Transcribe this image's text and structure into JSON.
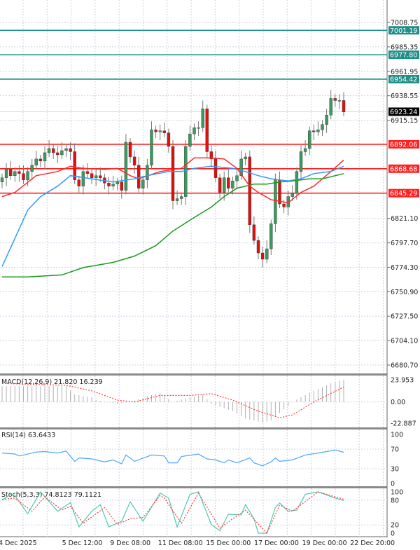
{
  "chart_data": [
    {
      "type": "candlestick",
      "panel": "price",
      "price_ticks": [
        "7008.75",
        "6985.35",
        "6961.95",
        "6938.55",
        "6915.15",
        "6821.10",
        "6797.70",
        "6774.30",
        "6750.90",
        "6727.50",
        "6704.10",
        "6680.70"
      ],
      "ylim": [
        6680.7,
        7008.75
      ],
      "grid": true,
      "first_open": 6856,
      "closes": [
        6860,
        6868,
        6862,
        6866,
        6864,
        6858,
        6866,
        6872,
        6878,
        6876,
        6884,
        6888,
        6884,
        6882,
        6886,
        6888,
        6885,
        6858,
        6852,
        6866,
        6864,
        6860,
        6862,
        6860,
        6855,
        6852,
        6854,
        6856,
        6848,
        6894,
        6880,
        6872,
        6850,
        6858,
        6872,
        6906,
        6904,
        6905,
        6903,
        6890,
        6838,
        6840,
        6842,
        6890,
        6902,
        6908,
        6908,
        6926,
        6885,
        6878,
        6860,
        6846,
        6860,
        6850,
        6857,
        6862,
        6878,
        6880,
        6815,
        6800,
        6788,
        6782,
        6792,
        6816,
        6858,
        6835,
        6832,
        6842,
        6845,
        6866,
        6885,
        6888,
        6905,
        6904,
        6906,
        6911,
        6920,
        6936,
        6934,
        6934,
        6923
      ],
      "current_price": {
        "value": "6923.24",
        "color": "#000000"
      },
      "levels": [
        {
          "value": "7001.19",
          "color": "#1f8f8a"
        },
        {
          "value": "6977.80",
          "color": "#1f8f8a"
        },
        {
          "value": "6954.42",
          "color": "#1f8f8a"
        },
        {
          "value": "6892.06",
          "color": "#ff2020"
        },
        {
          "value": "6868.68",
          "color": "#ff2020"
        },
        {
          "value": "6845.29",
          "color": "#ff2020"
        }
      ],
      "moving_averages": [
        {
          "color": "#ff2a2a",
          "idx": [
            0,
            3,
            8,
            13,
            16,
            19,
            24,
            27,
            30,
            32,
            37,
            42,
            45,
            49,
            52,
            55,
            58,
            60,
            63,
            67,
            70,
            73,
            77,
            80
          ],
          "values": [
            6842,
            6846,
            6862,
            6866,
            6871,
            6869,
            6868,
            6869,
            6862,
            6859,
            6866,
            6869,
            6879,
            6879,
            6878,
            6869,
            6852,
            6846,
            6839,
            6836,
            6846,
            6852,
            6866,
            6877
          ]
        },
        {
          "color": "#3399ff",
          "idx": [
            0,
            3,
            6,
            9,
            13,
            16,
            21,
            26,
            31,
            34,
            39,
            42,
            45,
            49,
            54,
            57,
            60,
            63,
            67,
            70,
            73,
            77,
            80
          ],
          "values": [
            6775,
            6802,
            6829,
            6842,
            6852,
            6862,
            6859,
            6856,
            6859,
            6862,
            6866,
            6866,
            6869,
            6871,
            6869,
            6866,
            6862,
            6859,
            6857,
            6859,
            6864,
            6866,
            6871
          ]
        },
        {
          "color": "#1a9a1a",
          "idx": [
            0,
            6,
            14,
            19,
            26,
            31,
            36,
            40,
            45,
            49,
            52,
            55,
            59,
            62,
            65,
            68,
            72,
            75,
            80
          ],
          "values": [
            6765,
            6765,
            6767,
            6774,
            6779,
            6785,
            6795,
            6809,
            6822,
            6832,
            6842,
            6850,
            6854,
            6854,
            6856,
            6857,
            6859,
            6859,
            6864
          ]
        }
      ],
      "up_color": "#3c9a5f",
      "down_color": "#e01010"
    },
    {
      "type": "bar+line",
      "panel": "macd",
      "label": "MACD(12,26,9) 21.820 16.239",
      "ticks": [
        "23.953",
        "0.00",
        "-22.887"
      ],
      "ylim": [
        -22.887,
        23.953
      ],
      "histogram": {
        "idx": [
          0,
          15,
          17,
          21,
          22,
          27,
          30,
          34,
          37,
          40,
          44,
          47,
          49,
          54,
          57,
          61,
          63,
          65,
          68,
          72,
          77,
          80
        ],
        "values": [
          17,
          17,
          8,
          5,
          2,
          -2,
          0,
          6,
          10,
          0,
          5,
          8,
          -2,
          -10,
          -18,
          -22,
          -20,
          -12,
          0,
          10,
          20,
          24
        ],
        "color": "#b0b0b0"
      },
      "signal": {
        "idx": [
          0,
          15,
          21,
          27,
          31,
          37,
          44,
          49,
          54,
          60,
          65,
          68,
          73,
          80
        ],
        "values": [
          20,
          18,
          12,
          2,
          0,
          7,
          7,
          9,
          2,
          -10,
          -17,
          -14,
          0,
          16
        ],
        "color": "#ff4040"
      }
    },
    {
      "type": "line",
      "panel": "rsi",
      "label": "RSI(14) 63.6433",
      "ticks": [
        "100",
        "70",
        "30",
        "0"
      ],
      "ylim": [
        0,
        100
      ],
      "series": [
        {
          "color": "#4da6ff",
          "idx": [
            0,
            3,
            4,
            8,
            10,
            13,
            15,
            17,
            18,
            21,
            24,
            26,
            28,
            29,
            31,
            35,
            38,
            39,
            41,
            42,
            46,
            48,
            50,
            52,
            53,
            55,
            58,
            59,
            61,
            63,
            64,
            65,
            68,
            71,
            74,
            78,
            80
          ],
          "values": [
            62,
            60,
            56,
            64,
            65,
            62,
            66,
            45,
            52,
            50,
            44,
            48,
            40,
            58,
            45,
            58,
            56,
            42,
            42,
            55,
            60,
            50,
            48,
            42,
            48,
            42,
            52,
            42,
            36,
            44,
            52,
            45,
            48,
            58,
            62,
            68,
            63.6
          ]
        }
      ]
    },
    {
      "type": "line",
      "panel": "stochastic",
      "label": "Stoch(5,3,3) 74.8123 79.1121",
      "ticks": [
        "100",
        "80",
        "20",
        "0"
      ],
      "ylim": [
        0,
        100
      ],
      "series": [
        {
          "color": "#4cc9b0",
          "dashed": false,
          "idx": [
            0,
            2,
            3,
            6,
            9,
            13,
            16,
            18,
            21,
            23,
            25,
            28,
            30,
            33,
            37,
            39,
            41,
            44,
            46,
            49,
            51,
            53,
            56,
            57,
            59,
            60,
            62,
            64,
            65,
            67,
            69,
            71,
            74,
            78,
            80
          ],
          "values": [
            80,
            94,
            91,
            47,
            100,
            53,
            74,
            15,
            53,
            69,
            15,
            29,
            76,
            29,
            97,
            85,
            15,
            94,
            100,
            21,
            6,
            46,
            44,
            69,
            35,
            0,
            0,
            62,
            73,
            53,
            56,
            94,
            100,
            85,
            79
          ]
        },
        {
          "color": "#ff4040",
          "dashed": true,
          "idx": [
            0,
            3,
            7,
            10,
            14,
            16,
            19,
            24,
            27,
            30,
            33,
            37,
            38,
            42,
            46,
            51,
            54,
            57,
            62,
            65,
            68,
            74,
            78,
            80
          ],
          "values": [
            82,
            85,
            53,
            88,
            56,
            65,
            24,
            62,
            21,
            35,
            38,
            91,
            85,
            24,
            97,
            12,
            35,
            56,
            0,
            68,
            53,
            100,
            88,
            82
          ]
        }
      ]
    }
  ],
  "time_axis": [
    "4 Dec 2025",
    "5 Dec 12:00",
    "9 Dec 08:00",
    "11 Dec 08:00",
    "15 Dec 00:00",
    "17 Dec 00:00",
    "19 Dec 00:00",
    "22 Dec 20:00"
  ]
}
